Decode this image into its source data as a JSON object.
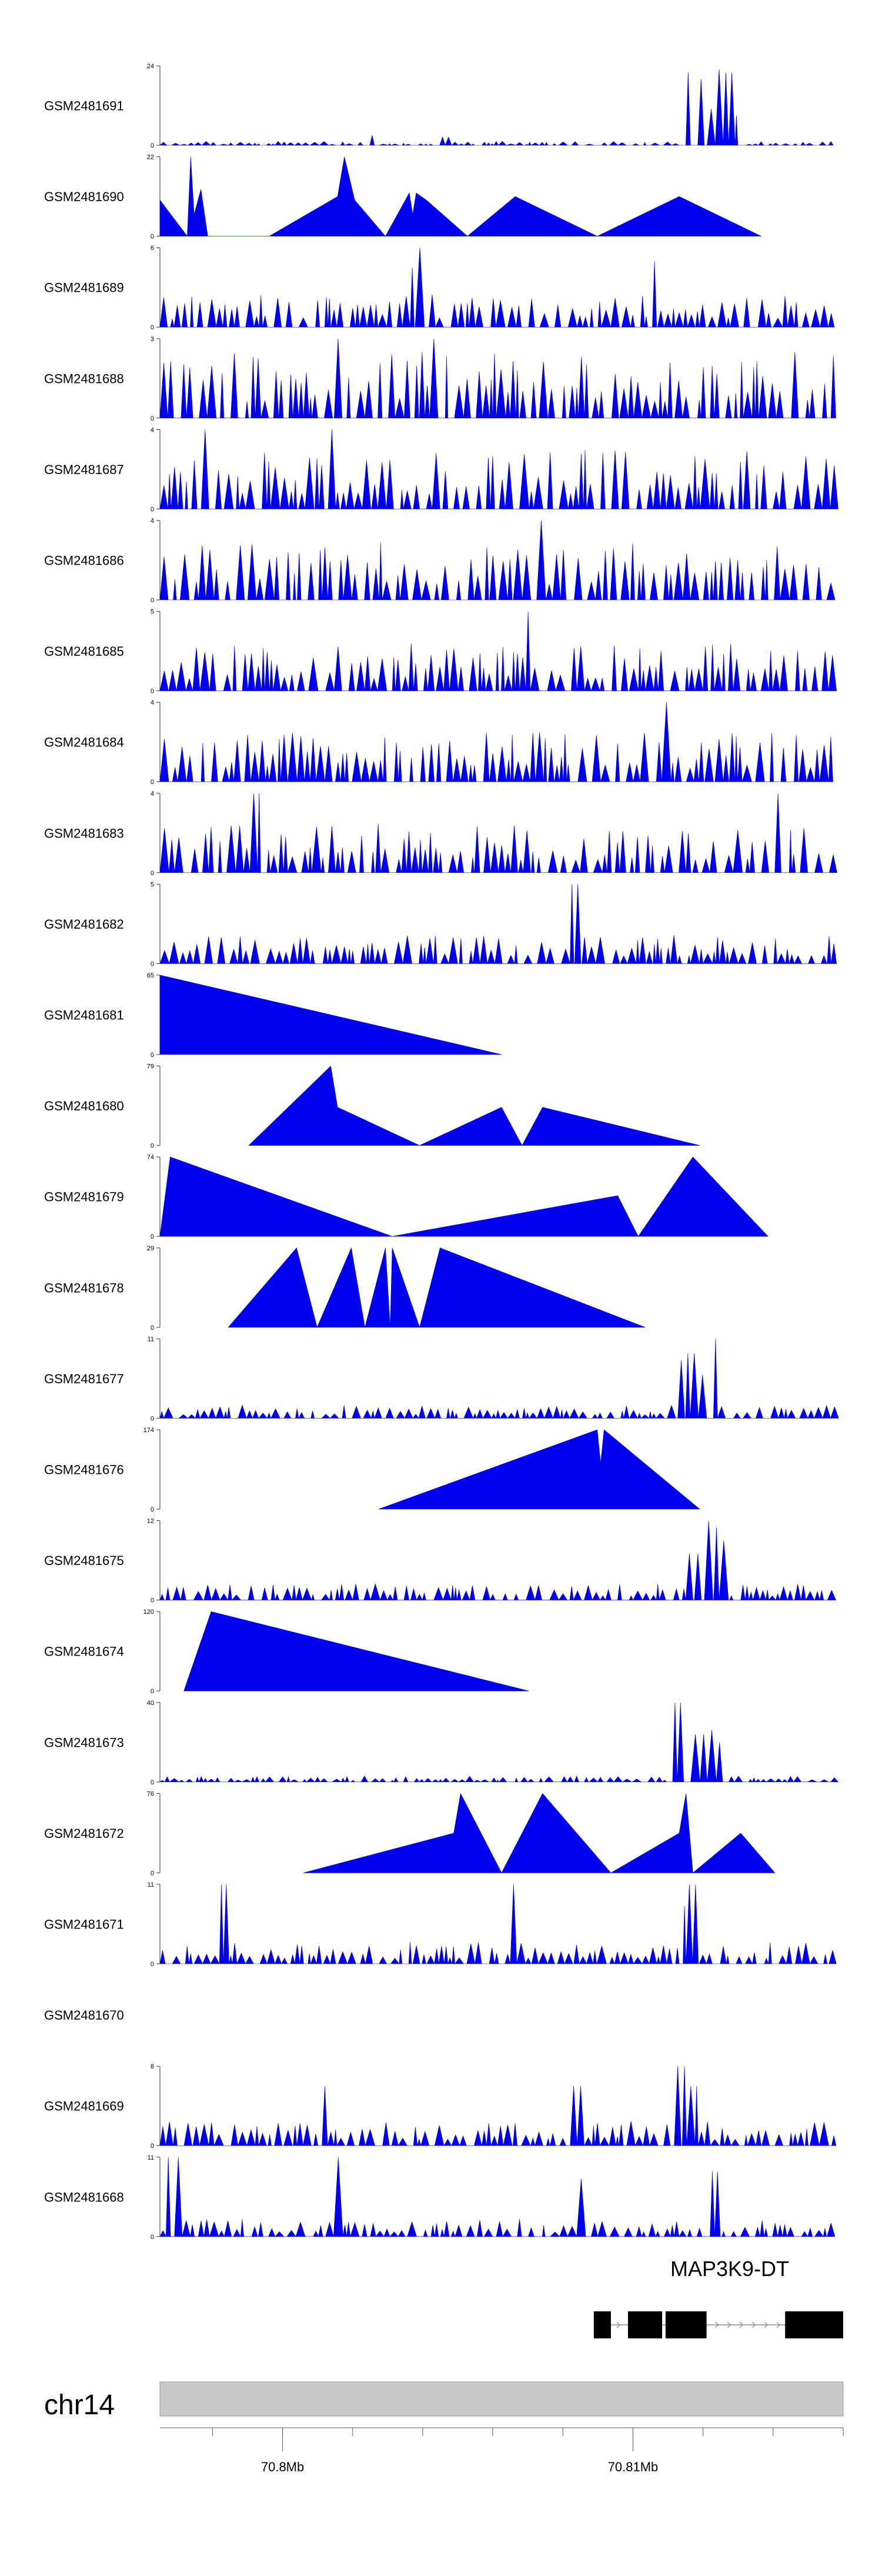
{
  "chart_data": {
    "type": "area",
    "title": "",
    "xlabel": "",
    "ylabel": "",
    "colors": {
      "signal": "#0000ee",
      "gene": "#000000",
      "ideogram": "#c8c8c8",
      "axis": "#555555"
    },
    "tracks": [
      {
        "name": "GSM2481691",
        "ymax": 24,
        "baseline_spikes": 1.2,
        "peaks": [
          [
            0.77,
            22
          ],
          [
            0.785,
            20
          ],
          [
            0.8,
            11
          ],
          [
            0.81,
            10
          ],
          [
            0.82,
            23
          ],
          [
            0.83,
            22
          ],
          [
            0.84,
            9
          ],
          [
            0.31,
            3
          ],
          [
            0.42,
            2.5
          ]
        ]
      },
      {
        "name": "GSM2481690",
        "ymax": 22,
        "kind": "sparse",
        "points": [
          [
            0,
            0
          ],
          [
            0.0,
            10
          ],
          [
            0.04,
            0
          ],
          [
            0.045,
            22
          ],
          [
            0.05,
            6
          ],
          [
            0.06,
            13
          ],
          [
            0.07,
            0
          ],
          [
            0.16,
            0
          ],
          [
            0.26,
            11
          ],
          [
            0.27,
            22
          ],
          [
            0.285,
            10
          ],
          [
            0.33,
            0
          ],
          [
            0.365,
            12
          ],
          [
            0.37,
            6
          ],
          [
            0.375,
            12
          ],
          [
            0.39,
            10
          ],
          [
            0.45,
            0
          ],
          [
            0.52,
            11
          ],
          [
            0.64,
            0
          ],
          [
            0.76,
            11
          ],
          [
            0.88,
            0
          ]
        ]
      },
      {
        "name": "GSM2481689",
        "ymax": 6,
        "baseline_spikes": 2.5,
        "peaks": [
          [
            0.38,
            6
          ],
          [
            0.72,
            5
          ],
          [
            0.37,
            4.5
          ]
        ]
      },
      {
        "name": "GSM2481688",
        "ymax": 3,
        "baseline_spikes": 2.5,
        "peaks": [
          [
            0.26,
            3
          ],
          [
            0.4,
            3
          ]
        ]
      },
      {
        "name": "GSM2481687",
        "ymax": 4,
        "baseline_spikes": 3,
        "peaks": [
          [
            0.25,
            4
          ],
          [
            0.07,
            4
          ]
        ]
      },
      {
        "name": "GSM2481686",
        "ymax": 4,
        "baseline_spikes": 3,
        "peaks": [
          [
            0.56,
            4
          ]
        ]
      },
      {
        "name": "GSM2481685",
        "ymax": 5,
        "baseline_spikes": 3,
        "peaks": [
          [
            0.54,
            5
          ]
        ]
      },
      {
        "name": "GSM2481684",
        "ymax": 4,
        "baseline_spikes": 2.5,
        "peaks": [
          [
            0.74,
            4
          ],
          [
            0.72,
            3.5
          ]
        ]
      },
      {
        "name": "GSM2481683",
        "ymax": 4,
        "baseline_spikes": 2.5,
        "peaks": [
          [
            0.14,
            4
          ],
          [
            0.9,
            4
          ]
        ]
      },
      {
        "name": "GSM2481682",
        "ymax": 5,
        "baseline_spikes": 1.8,
        "peaks": [
          [
            0.61,
            5
          ]
        ]
      },
      {
        "name": "GSM2481681",
        "ymax": 65,
        "kind": "sparse",
        "points": [
          [
            0,
            0
          ],
          [
            0.0,
            65
          ],
          [
            0.5,
            0
          ]
        ]
      },
      {
        "name": "GSM2481680",
        "ymax": 79,
        "kind": "sparse",
        "points": [
          [
            0.13,
            0
          ],
          [
            0.25,
            79
          ],
          [
            0.26,
            38
          ],
          [
            0.38,
            0
          ],
          [
            0.5,
            38
          ],
          [
            0.53,
            0
          ],
          [
            0.56,
            38
          ],
          [
            0.79,
            0
          ]
        ]
      },
      {
        "name": "GSM2481679",
        "ymax": 74,
        "kind": "sparse",
        "points": [
          [
            0,
            0
          ],
          [
            0.015,
            74
          ],
          [
            0.34,
            0
          ],
          [
            0.67,
            38
          ],
          [
            0.7,
            0
          ],
          [
            0.78,
            74
          ],
          [
            0.89,
            0
          ]
        ]
      },
      {
        "name": "GSM2481678",
        "ymax": 29,
        "kind": "sparse",
        "points": [
          [
            0.1,
            0
          ],
          [
            0.2,
            29
          ],
          [
            0.23,
            0
          ],
          [
            0.28,
            29
          ],
          [
            0.3,
            0
          ],
          [
            0.33,
            29
          ],
          [
            0.337,
            0
          ],
          [
            0.34,
            29
          ],
          [
            0.38,
            0
          ],
          [
            0.41,
            29
          ],
          [
            0.71,
            0
          ]
        ]
      },
      {
        "name": "GSM2481677",
        "ymax": 11,
        "baseline_spikes": 1.8,
        "peaks": [
          [
            0.76,
            8
          ],
          [
            0.78,
            9
          ],
          [
            0.8,
            6
          ],
          [
            0.81,
            11
          ],
          [
            0.83,
            7
          ]
        ]
      },
      {
        "name": "GSM2481676",
        "ymax": 174,
        "kind": "sparse",
        "points": [
          [
            0.32,
            0
          ],
          [
            0.64,
            174
          ],
          [
            0.645,
            100
          ],
          [
            0.65,
            174
          ],
          [
            0.79,
            0
          ]
        ]
      },
      {
        "name": "GSM2481675",
        "ymax": 12,
        "baseline_spikes": 2.5,
        "peaks": [
          [
            0.8,
            12
          ],
          [
            0.81,
            11
          ],
          [
            0.82,
            9
          ],
          [
            0.78,
            7
          ]
        ]
      },
      {
        "name": "GSM2481674",
        "ymax": 120,
        "kind": "sparse",
        "points": [
          [
            0.035,
            0
          ],
          [
            0.075,
            120
          ],
          [
            0.54,
            0
          ]
        ]
      },
      {
        "name": "GSM2481673",
        "ymax": 40,
        "baseline_spikes": 3,
        "peaks": [
          [
            0.76,
            40
          ],
          [
            0.77,
            22
          ],
          [
            0.78,
            20
          ],
          [
            0.79,
            24
          ],
          [
            0.8,
            22
          ],
          [
            0.81,
            26
          ],
          [
            0.82,
            20
          ]
        ]
      },
      {
        "name": "GSM2481672",
        "ymax": 76,
        "kind": "sparse",
        "points": [
          [
            0.21,
            0
          ],
          [
            0.43,
            38
          ],
          [
            0.44,
            76
          ],
          [
            0.5,
            0
          ],
          [
            0.56,
            76
          ],
          [
            0.66,
            0
          ],
          [
            0.76,
            38
          ],
          [
            0.77,
            76
          ],
          [
            0.78,
            0
          ],
          [
            0.85,
            38
          ],
          [
            0.9,
            0
          ]
        ]
      },
      {
        "name": "GSM2481671",
        "ymax": 11,
        "baseline_spikes": 3,
        "peaks": [
          [
            0.09,
            11
          ],
          [
            0.52,
            11
          ],
          [
            0.78,
            11
          ],
          [
            0.77,
            8
          ]
        ]
      },
      {
        "name": "GSM2481670",
        "ymax": null,
        "empty": true
      },
      {
        "name": "GSM2481669",
        "ymax": 8,
        "baseline_spikes": 2.5,
        "peaks": [
          [
            0.24,
            6
          ],
          [
            0.61,
            6
          ],
          [
            0.76,
            8
          ],
          [
            0.78,
            6
          ]
        ]
      },
      {
        "name": "GSM2481668",
        "ymax": 11,
        "baseline_spikes": 2.5,
        "peaks": [
          [
            0.015,
            8
          ],
          [
            0.02,
            11
          ],
          [
            0.26,
            11
          ],
          [
            0.62,
            8
          ],
          [
            0.81,
            9
          ]
        ]
      }
    ],
    "gene": {
      "name": "MAP3K9-DT",
      "start": 0.635,
      "end": 1.0,
      "exons": [
        [
          0.635,
          0.66
        ],
        [
          0.685,
          0.735
        ],
        [
          0.74,
          0.8
        ],
        [
          0.915,
          1.0
        ]
      ]
    },
    "chromosome": "chr14",
    "genome_axis": {
      "range_mb": [
        70.7965,
        70.816
      ],
      "ticks": [
        {
          "mb": 70.8,
          "label": "70.8Mb"
        },
        {
          "mb": 70.81,
          "label": "70.81Mb"
        }
      ],
      "minor_step_mb": 0.002
    }
  }
}
